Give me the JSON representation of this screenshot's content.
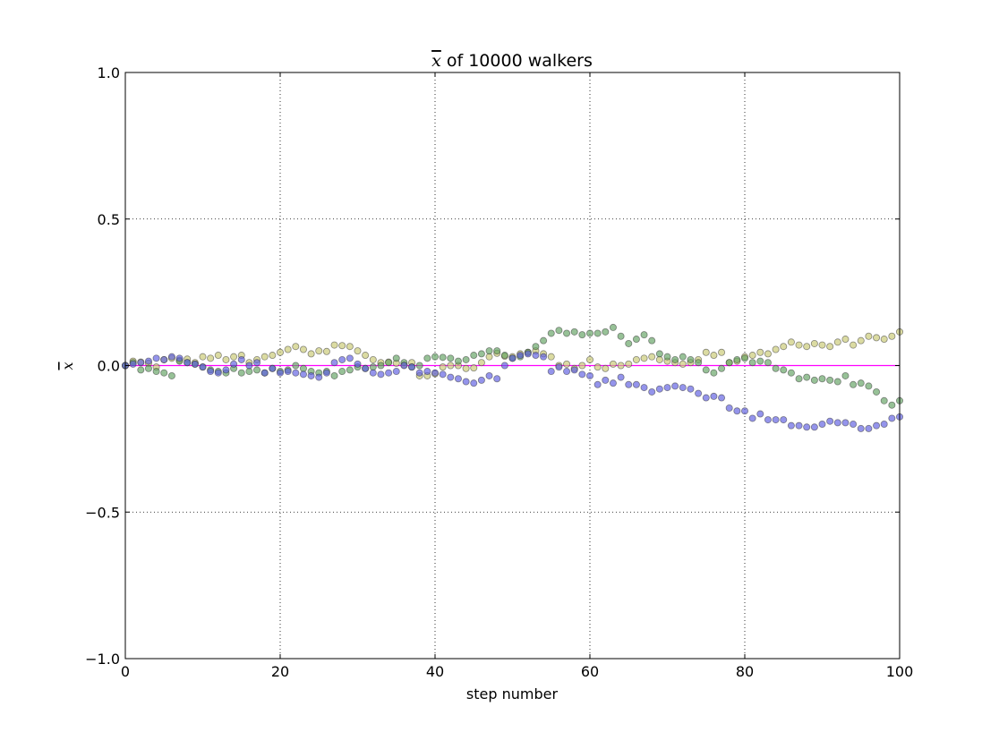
{
  "chart_data": {
    "type": "scatter",
    "title": {
      "math": "x",
      "text": " of 10000 walkers"
    },
    "xlabel": "step number",
    "ylabel": "x",
    "xlim": [
      0,
      100
    ],
    "ylim": [
      -1.0,
      1.0
    ],
    "xticks": [
      0,
      20,
      40,
      60,
      80,
      100
    ],
    "yticks": [
      -1.0,
      -0.5,
      0.0,
      0.5,
      1.0
    ],
    "xtick_labels": [
      "0",
      "20",
      "40",
      "60",
      "80",
      "100"
    ],
    "ytick_labels": [
      "−1.0",
      "−0.5",
      "0.0",
      "0.5",
      "1.0"
    ],
    "grid": true,
    "reference_line": {
      "y": 0.0,
      "color": "#ff00ff"
    },
    "series": [
      {
        "color": "#c8c870",
        "values": [
          0.0,
          0.015,
          0.012,
          0.008,
          -0.005,
          0.02,
          0.025,
          0.018,
          0.022,
          0.01,
          0.03,
          0.025,
          0.035,
          0.02,
          0.03,
          0.035,
          0.01,
          0.02,
          0.03,
          0.035,
          0.045,
          0.055,
          0.065,
          0.055,
          0.04,
          0.05,
          0.048,
          0.07,
          0.068,
          0.065,
          0.05,
          0.035,
          0.02,
          0.01,
          0.012,
          0.008,
          0.002,
          0.01,
          -0.035,
          -0.035,
          -0.028,
          -0.005,
          0.0,
          0.0,
          -0.01,
          -0.008,
          0.01,
          0.03,
          0.042,
          0.032,
          0.03,
          0.04,
          0.045,
          0.05,
          0.04,
          0.03,
          0.0,
          0.005,
          -0.01,
          0.0,
          0.02,
          -0.005,
          -0.01,
          0.005,
          0.0,
          0.005,
          0.02,
          0.025,
          0.03,
          0.02,
          0.015,
          0.01,
          0.005,
          0.01,
          0.02,
          0.045,
          0.035,
          0.045,
          0.01,
          0.015,
          0.03,
          0.035,
          0.045,
          0.04,
          0.055,
          0.065,
          0.08,
          0.07,
          0.065,
          0.075,
          0.07,
          0.065,
          0.08,
          0.09,
          0.07,
          0.085,
          0.1,
          0.095,
          0.09,
          0.1,
          0.115
        ]
      },
      {
        "color": "#60a060",
        "values": [
          0.0,
          0.01,
          -0.015,
          -0.01,
          -0.02,
          -0.025,
          -0.035,
          0.015,
          0.01,
          0.005,
          -0.005,
          -0.015,
          -0.02,
          -0.025,
          -0.01,
          -0.025,
          -0.02,
          -0.015,
          -0.025,
          -0.01,
          -0.02,
          -0.015,
          0.0,
          -0.01,
          -0.02,
          -0.025,
          -0.02,
          -0.035,
          -0.02,
          -0.015,
          -0.005,
          -0.01,
          -0.005,
          0.0,
          0.01,
          0.025,
          0.01,
          -0.005,
          0.0,
          0.025,
          0.03,
          0.028,
          0.025,
          0.015,
          0.02,
          0.035,
          0.04,
          0.05,
          0.05,
          0.035,
          0.025,
          0.03,
          0.045,
          0.065,
          0.085,
          0.11,
          0.12,
          0.11,
          0.115,
          0.105,
          0.11,
          0.11,
          0.115,
          0.13,
          0.1,
          0.075,
          0.09,
          0.105,
          0.085,
          0.04,
          0.03,
          0.02,
          0.03,
          0.02,
          0.01,
          -0.015,
          -0.025,
          -0.01,
          0.01,
          0.02,
          0.025,
          0.01,
          0.015,
          0.01,
          -0.01,
          -0.015,
          -0.025,
          -0.045,
          -0.04,
          -0.05,
          -0.045,
          -0.05,
          -0.055,
          -0.035,
          -0.065,
          -0.06,
          -0.07,
          -0.09,
          -0.12,
          -0.135,
          -0.12
        ]
      },
      {
        "color": "#5a5ae0",
        "values": [
          0.0,
          0.005,
          0.01,
          0.015,
          0.025,
          0.02,
          0.03,
          0.025,
          0.01,
          0.005,
          -0.005,
          -0.02,
          -0.025,
          -0.015,
          0.005,
          0.02,
          0.0,
          0.01,
          -0.025,
          -0.01,
          -0.025,
          -0.02,
          -0.025,
          -0.03,
          -0.035,
          -0.04,
          -0.025,
          0.01,
          0.02,
          0.025,
          0.005,
          -0.01,
          -0.025,
          -0.03,
          -0.025,
          -0.02,
          0.0,
          -0.005,
          -0.025,
          -0.02,
          -0.025,
          -0.03,
          -0.04,
          -0.045,
          -0.055,
          -0.06,
          -0.05,
          -0.035,
          -0.045,
          0.0,
          0.025,
          0.035,
          0.04,
          0.035,
          0.03,
          -0.02,
          -0.005,
          -0.02,
          -0.015,
          -0.03,
          -0.035,
          -0.065,
          -0.05,
          -0.06,
          -0.04,
          -0.065,
          -0.065,
          -0.075,
          -0.09,
          -0.08,
          -0.075,
          -0.07,
          -0.075,
          -0.08,
          -0.095,
          -0.11,
          -0.105,
          -0.11,
          -0.145,
          -0.155,
          -0.155,
          -0.18,
          -0.165,
          -0.185,
          -0.185,
          -0.185,
          -0.205,
          -0.205,
          -0.21,
          -0.21,
          -0.2,
          -0.19,
          -0.195,
          -0.195,
          -0.2,
          -0.215,
          -0.215,
          -0.205,
          -0.2,
          -0.18,
          -0.175
        ]
      }
    ]
  }
}
